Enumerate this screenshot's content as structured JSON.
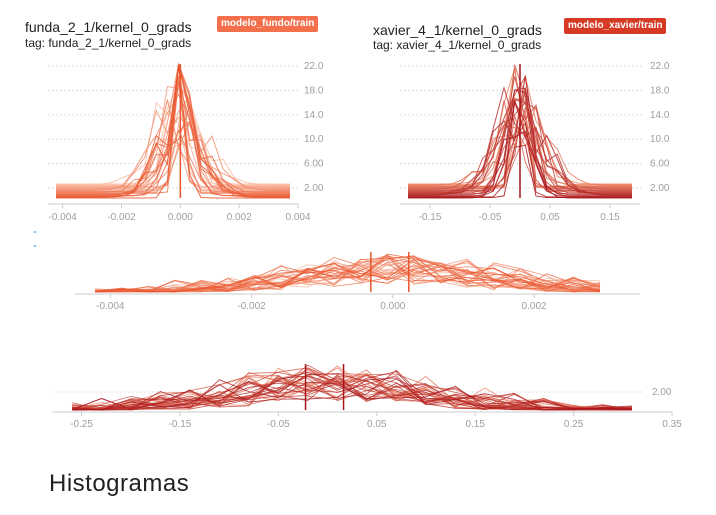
{
  "cards": [
    {
      "title": "funda_2_1/kernel_0_grads",
      "tag": "tag: funda_2_1/kernel_0_grads",
      "run": "modelo_fundo/train",
      "run_color": "#f4704c",
      "line_color_dark": "#e8542c",
      "line_color_light": "#fbbfa8"
    },
    {
      "title": "xavier_4_1/kernel_0_grads",
      "tag": "tag: xavier_4_1/kernel_0_grads",
      "run": "modelo_xavier/train",
      "run_color": "#d63a25",
      "line_color_dark": "#a8141a",
      "line_color_light": "#f08868"
    }
  ],
  "chart_data": [
    {
      "type": "histogram-offset",
      "x_ticks": [
        "-0.004",
        "-0.002",
        "0.000",
        "0.002",
        "0.004"
      ],
      "x_range": [
        -0.0045,
        0.004
      ],
      "y_ticks": [
        "22.0",
        "18.0",
        "14.0",
        "10.0",
        "6.00",
        "2.00"
      ],
      "peak": 24
    },
    {
      "type": "histogram-offset",
      "x_ticks": [
        "-0.15",
        "-0.05",
        "0.05",
        "0.15"
      ],
      "x_range": [
        -0.2,
        0.2
      ],
      "y_ticks": [
        "22.0",
        "18.0",
        "14.0",
        "10.0",
        "6.00",
        "2.00"
      ],
      "peak": 23
    },
    {
      "type": "histogram-overlay",
      "x_ticks": [
        "-0.004",
        "-0.002",
        "0.000",
        "0.002"
      ],
      "x_range": [
        -0.0045,
        0.0035
      ]
    },
    {
      "type": "histogram-overlay",
      "x_ticks": [
        "-0.25",
        "-0.15",
        "-0.05",
        "0.05",
        "0.15",
        "0.25",
        "0.35"
      ],
      "y_ticks": [
        "2.00"
      ],
      "x_range": [
        -0.28,
        0.35
      ]
    }
  ],
  "section_title": "Histogramas",
  "link_text": "- -"
}
